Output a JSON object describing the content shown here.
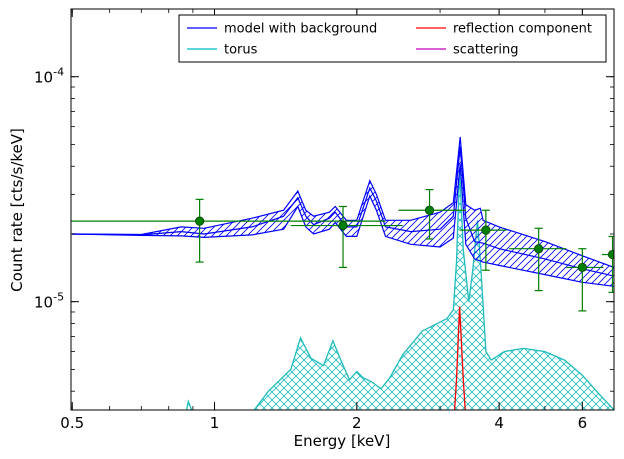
{
  "chart_data": {
    "type": "line",
    "xlabel": "Energy [keV]",
    "ylabel": "Count rate [cts/s/keV]",
    "x_scale": "log",
    "y_scale": "log",
    "xlim": [
      0.497,
      7.0
    ],
    "ylim": [
      3.3e-06,
      0.0002
    ],
    "x_ticks": [
      {
        "value": 0.5,
        "label": "0.5"
      },
      {
        "value": 1,
        "label": "1"
      },
      {
        "value": 2,
        "label": "2"
      },
      {
        "value": 4,
        "label": "4"
      },
      {
        "value": 6,
        "label": "6"
      }
    ],
    "y_ticks": [
      {
        "value": 1e-05,
        "base": "10",
        "exp": "-5"
      },
      {
        "value": 0.0001,
        "base": "10",
        "exp": "-4"
      }
    ],
    "legend": {
      "placement": "top-right",
      "columns": 2,
      "entries": [
        {
          "label": "model with background",
          "color": "#0000ff"
        },
        {
          "label": "torus",
          "color": "#00bfbf"
        },
        {
          "label": "reflection component",
          "color": "#ff0000"
        },
        {
          "label": "scattering",
          "color": "#bf00bf"
        }
      ]
    },
    "colors": {
      "model": "#0000ff",
      "torus": "#1fbcbc",
      "reflection": "#ff0000",
      "scattering": "#bf00bf",
      "data": "#007f00",
      "data_edge": "#004000"
    },
    "data_points": [
      {
        "x": 0.93,
        "y": 2.28e-05,
        "xerr": [
          0.497,
          2.3
        ],
        "yerr": [
          1.5e-05,
          2.85e-05
        ]
      },
      {
        "x": 1.87,
        "y": 2.18e-05,
        "xerr": [
          1.45,
          2.5
        ],
        "yerr": [
          1.42e-05,
          2.65e-05
        ]
      },
      {
        "x": 2.85,
        "y": 2.55e-05,
        "xerr": [
          2.45,
          3.4
        ],
        "yerr": [
          1.9e-05,
          3.15e-05
        ]
      },
      {
        "x": 3.75,
        "y": 2.08e-05,
        "xerr": [
          3.3,
          4.15
        ],
        "yerr": [
          1.38e-05,
          2.55e-05
        ]
      },
      {
        "x": 4.85,
        "y": 1.72e-05,
        "xerr": [
          4.2,
          5.55
        ],
        "yerr": [
          1.12e-05,
          2.12e-05
        ]
      },
      {
        "x": 6.0,
        "y": 1.42e-05,
        "xerr": [
          5.55,
          6.65
        ],
        "yerr": [
          9.1e-06,
          1.72e-05
        ]
      },
      {
        "x": 6.95,
        "y": 1.62e-05,
        "xerr": [
          6.6,
          7.0
        ],
        "yerr": [
          1.1e-05,
          1.95e-05
        ]
      }
    ],
    "model_mid": [
      [
        0.5,
        2e-05
      ],
      [
        0.7,
        1.98e-05
      ],
      [
        0.85,
        2.05e-05
      ],
      [
        0.95,
        2e-05
      ],
      [
        1.2,
        2.15e-05
      ],
      [
        1.4,
        2.4e-05
      ],
      [
        1.5,
        2.9e-05
      ],
      [
        1.56,
        2.4e-05
      ],
      [
        1.62,
        2.2e-05
      ],
      [
        1.75,
        2.35e-05
      ],
      [
        1.8,
        2.5e-05
      ],
      [
        1.9,
        2.15e-05
      ],
      [
        2.0,
        2.15e-05
      ],
      [
        2.13,
        3.2e-05
      ],
      [
        2.2,
        2.8e-05
      ],
      [
        2.3,
        2.15e-05
      ],
      [
        2.6,
        2.05e-05
      ],
      [
        3.0,
        2.1e-05
      ],
      [
        3.2,
        2.4e-05
      ],
      [
        3.31,
        4.9e-05
      ],
      [
        3.4,
        2.35e-05
      ],
      [
        3.55,
        1.85e-05
      ],
      [
        3.7,
        1.82e-05
      ],
      [
        4.0,
        1.72e-05
      ],
      [
        5.0,
        1.55e-05
      ],
      [
        6.0,
        1.4e-05
      ],
      [
        7.0,
        1.3e-05
      ]
    ],
    "model_upper": [
      [
        0.5,
        2e-05
      ],
      [
        0.7,
        1.99e-05
      ],
      [
        0.85,
        2.15e-05
      ],
      [
        0.95,
        2.12e-05
      ],
      [
        1.2,
        2.35e-05
      ],
      [
        1.4,
        2.55e-05
      ],
      [
        1.5,
        3.1e-05
      ],
      [
        1.56,
        2.55e-05
      ],
      [
        1.62,
        2.4e-05
      ],
      [
        1.75,
        2.5e-05
      ],
      [
        1.8,
        2.65e-05
      ],
      [
        1.9,
        2.3e-05
      ],
      [
        2.0,
        2.3e-05
      ],
      [
        2.13,
        3.45e-05
      ],
      [
        2.2,
        3e-05
      ],
      [
        2.3,
        2.3e-05
      ],
      [
        2.6,
        2.3e-05
      ],
      [
        3.0,
        2.5e-05
      ],
      [
        3.2,
        2.75e-05
      ],
      [
        3.31,
        5.4e-05
      ],
      [
        3.4,
        2.7e-05
      ],
      [
        3.55,
        2.55e-05
      ],
      [
        3.65,
        2.6e-05
      ],
      [
        3.7,
        2.3e-05
      ],
      [
        4.0,
        2.15e-05
      ],
      [
        5.0,
        1.85e-05
      ],
      [
        6.0,
        1.6e-05
      ],
      [
        7.0,
        1.42e-05
      ]
    ],
    "model_lower": [
      [
        0.5,
        2e-05
      ],
      [
        0.7,
        1.97e-05
      ],
      [
        0.85,
        1.96e-05
      ],
      [
        0.95,
        1.93e-05
      ],
      [
        1.2,
        1.98e-05
      ],
      [
        1.4,
        2.1e-05
      ],
      [
        1.5,
        2.65e-05
      ],
      [
        1.56,
        2.15e-05
      ],
      [
        1.62,
        2e-05
      ],
      [
        1.75,
        2.1e-05
      ],
      [
        1.8,
        2.25e-05
      ],
      [
        1.9,
        1.95e-05
      ],
      [
        2.0,
        1.95e-05
      ],
      [
        2.13,
        2.95e-05
      ],
      [
        2.2,
        2.55e-05
      ],
      [
        2.3,
        1.95e-05
      ],
      [
        2.6,
        1.8e-05
      ],
      [
        3.0,
        1.75e-05
      ],
      [
        3.2,
        1.92e-05
      ],
      [
        3.31,
        4.1e-05
      ],
      [
        3.4,
        1.8e-05
      ],
      [
        3.55,
        1.55e-05
      ],
      [
        3.7,
        1.5e-05
      ],
      [
        4.0,
        1.45e-05
      ],
      [
        5.0,
        1.32e-05
      ],
      [
        6.0,
        1.22e-05
      ],
      [
        7.0,
        1.17e-05
      ]
    ],
    "torus": [
      [
        0.87,
        3.2e-06
      ],
      [
        0.88,
        3.6e-06
      ],
      [
        0.9,
        3.2e-06
      ],
      [
        1.2,
        3.2e-06
      ],
      [
        1.3,
        4e-06
      ],
      [
        1.45,
        5e-06
      ],
      [
        1.52,
        6.9e-06
      ],
      [
        1.6,
        5.6e-06
      ],
      [
        1.7,
        5.2e-06
      ],
      [
        1.78,
        6.7e-06
      ],
      [
        1.85,
        5.5e-06
      ],
      [
        1.93,
        4.5e-06
      ],
      [
        2.0,
        4.9e-06
      ],
      [
        2.06,
        4.6e-06
      ],
      [
        2.15,
        4.4e-06
      ],
      [
        2.25,
        4.1e-06
      ],
      [
        2.35,
        4.6e-06
      ],
      [
        2.5,
        5.8e-06
      ],
      [
        2.75,
        7.4e-06
      ],
      [
        3.1,
        8.4e-06
      ],
      [
        3.2,
        9.2e-06
      ],
      [
        3.25,
        1.5e-05
      ],
      [
        3.3,
        3.9e-05
      ],
      [
        3.36,
        1.7e-05
      ],
      [
        3.45,
        1e-05
      ],
      [
        3.52,
        1.4e-05
      ],
      [
        3.6,
        2.3e-05
      ],
      [
        3.66,
        1.4e-05
      ],
      [
        3.75,
        6e-06
      ],
      [
        3.85,
        5.5e-06
      ],
      [
        4.1,
        6e-06
      ],
      [
        4.5,
        6.2e-06
      ],
      [
        5.0,
        6e-06
      ],
      [
        5.5,
        5.5e-06
      ],
      [
        6.0,
        4.7e-06
      ],
      [
        6.5,
        3.9e-06
      ],
      [
        7.0,
        3.3e-06
      ]
    ],
    "reflection": [
      [
        3.22,
        3.3e-06
      ],
      [
        3.25,
        4.5e-06
      ],
      [
        3.3,
        9.5e-06
      ],
      [
        3.36,
        4.5e-06
      ],
      [
        3.39,
        3.3e-06
      ]
    ]
  }
}
